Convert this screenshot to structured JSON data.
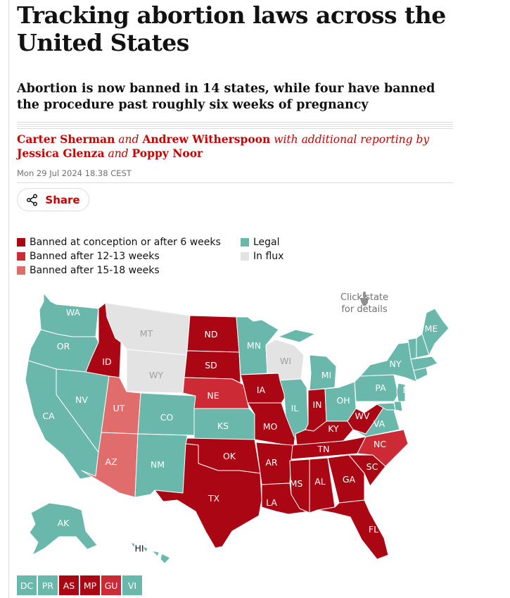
{
  "article": {
    "headline": "Tracking abortion laws across the United States",
    "standfirst": "Abortion is now banned in 14 states, while four have banned the procedure past roughly six weeks of pregnancy",
    "byline": {
      "author1": "Carter Sherman",
      "and1": "and",
      "author2": "Andrew Witherspoon",
      "with_text": "with additional reporting by",
      "author3": "Jessica Glenza",
      "and2": "and",
      "author4": "Poppy Noor"
    },
    "dateline": "Mon 29 Jul 2024 18.38 CEST",
    "share_label": "Share"
  },
  "colors": {
    "banned6": "#ab0613",
    "banned12": "#cc2b36",
    "banned15": "#e06c6c",
    "legal": "#69b8ab",
    "influx": "#e3e3e3",
    "accent": "#c70000"
  },
  "legend": [
    {
      "key": "banned6",
      "label": "Banned at conception or after 6 weeks"
    },
    {
      "key": "banned12",
      "label": "Banned after 12-13 weeks"
    },
    {
      "key": "banned15",
      "label": "Banned after 15-18 weeks"
    },
    {
      "key": "legal",
      "label": "Legal"
    },
    {
      "key": "influx",
      "label": "In flux"
    }
  ],
  "map": {
    "hint_line1": "Click state",
    "hint_line2": "for details",
    "states": {
      "WA": "legal",
      "OR": "legal",
      "CA": "legal",
      "NV": "legal",
      "ID": "banned6",
      "MT": "influx",
      "WY": "influx",
      "UT": "banned15",
      "AZ": "banned15",
      "CO": "legal",
      "NM": "legal",
      "ND": "banned6",
      "SD": "banned6",
      "NE": "banned12",
      "KS": "legal",
      "OK": "banned6",
      "TX": "banned6",
      "MN": "legal",
      "IA": "banned6",
      "MO": "banned6",
      "AR": "banned6",
      "LA": "banned6",
      "WI": "influx",
      "IL": "legal",
      "MI": "legal",
      "IN": "banned6",
      "KY": "banned6",
      "TN": "banned6",
      "MS": "banned6",
      "AL": "banned6",
      "GA": "banned6",
      "FL": "banned6",
      "SC": "banned6",
      "NC": "banned12",
      "OH": "legal",
      "WV": "banned6",
      "VA": "legal",
      "PA": "legal",
      "NY": "legal",
      "NJ": "legal",
      "DE": "legal",
      "ME": "legal",
      "AK": "legal",
      "HI": "legal"
    }
  },
  "territories": [
    {
      "code": "DC",
      "status": "legal"
    },
    {
      "code": "PR",
      "status": "legal"
    },
    {
      "code": "AS",
      "status": "banned6"
    },
    {
      "code": "MP",
      "status": "banned6"
    },
    {
      "code": "GU",
      "status": "banned12"
    },
    {
      "code": "VI",
      "status": "legal"
    }
  ]
}
